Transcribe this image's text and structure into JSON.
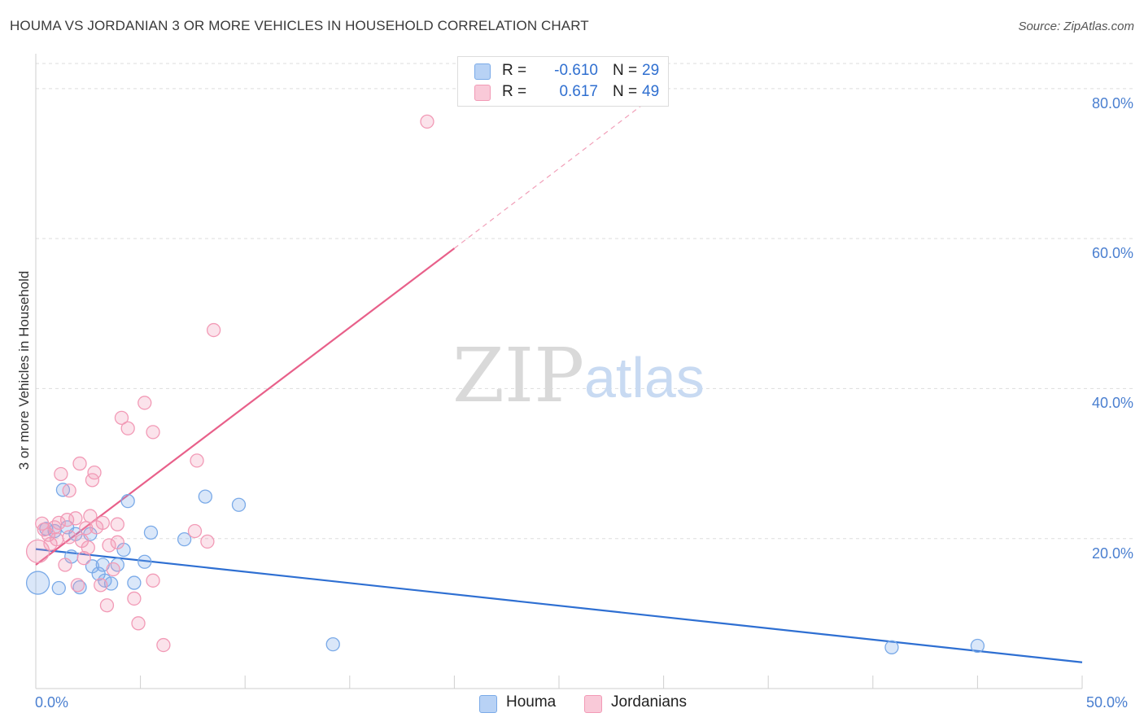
{
  "title": "HOUMA VS JORDANIAN 3 OR MORE VEHICLES IN HOUSEHOLD CORRELATION CHART",
  "source": "Source: ZipAtlas.com",
  "watermark": {
    "zip": "ZIP",
    "atlas": "atlas"
  },
  "legend": {
    "rows": [
      {
        "r_label": "R =",
        "r_value": "-0.610",
        "n_label": "N =",
        "n_value": "29",
        "color": "#7aaae8",
        "fill": "#b8d2f5"
      },
      {
        "r_label": "R =",
        "r_value": "0.617",
        "n_label": "N =",
        "n_value": "49",
        "color": "#f29ab6",
        "fill": "#f9c9d8"
      }
    ]
  },
  "bottom_legend": [
    {
      "label": "Houma",
      "color": "#7aaae8",
      "fill": "#b8d2f5"
    },
    {
      "label": "Jordanians",
      "color": "#f29ab6",
      "fill": "#f9c9d8"
    }
  ],
  "chart_data": {
    "type": "scatter",
    "title": "HOUMA VS JORDANIAN 3 OR MORE VEHICLES IN HOUSEHOLD CORRELATION CHART",
    "xlabel": "",
    "ylabel": "3 or more Vehicles in Household",
    "xlim": [
      0,
      50
    ],
    "ylim": [
      0,
      84
    ],
    "x_tick_labels": [
      "0.0%",
      "50.0%"
    ],
    "y_ticks": [
      20,
      40,
      60,
      80
    ],
    "y_tick_labels": [
      "20.0%",
      "40.0%",
      "60.0%",
      "80.0%"
    ],
    "grid": true,
    "series": [
      {
        "name": "Houma",
        "color": "#7aaae8",
        "line_color": "#2e6fd2",
        "trend": {
          "x": [
            0,
            50
          ],
          "y": [
            18.6,
            3.5
          ],
          "dashed_to": null
        },
        "points": [
          {
            "x": 0.1,
            "y": 14.1,
            "big": true
          },
          {
            "x": 0.5,
            "y": 21.3
          },
          {
            "x": 0.9,
            "y": 21.0
          },
          {
            "x": 1.1,
            "y": 13.4
          },
          {
            "x": 1.3,
            "y": 26.5
          },
          {
            "x": 1.5,
            "y": 21.5
          },
          {
            "x": 1.7,
            "y": 17.6
          },
          {
            "x": 1.9,
            "y": 20.6
          },
          {
            "x": 2.1,
            "y": 13.5
          },
          {
            "x": 2.6,
            "y": 20.6
          },
          {
            "x": 2.7,
            "y": 16.3
          },
          {
            "x": 3.0,
            "y": 15.3
          },
          {
            "x": 3.2,
            "y": 16.5
          },
          {
            "x": 3.3,
            "y": 14.4
          },
          {
            "x": 3.6,
            "y": 14.0
          },
          {
            "x": 3.9,
            "y": 16.5
          },
          {
            "x": 4.2,
            "y": 18.5
          },
          {
            "x": 4.4,
            "y": 25.0
          },
          {
            "x": 4.7,
            "y": 14.1
          },
          {
            "x": 5.2,
            "y": 16.9
          },
          {
            "x": 5.5,
            "y": 20.8
          },
          {
            "x": 7.1,
            "y": 19.9
          },
          {
            "x": 8.1,
            "y": 25.6
          },
          {
            "x": 9.7,
            "y": 24.5
          },
          {
            "x": 14.2,
            "y": 5.9
          },
          {
            "x": 40.9,
            "y": 5.5
          },
          {
            "x": 45.0,
            "y": 5.7
          }
        ]
      },
      {
        "name": "Jordanians",
        "color": "#f29ab6",
        "line_color": "#e8608a",
        "trend": {
          "x": [
            0,
            20
          ],
          "y": [
            16.5,
            58.7
          ],
          "dashed_to": [
            30,
            80.0
          ]
        },
        "points": [
          {
            "x": 0.1,
            "y": 18.3,
            "big": true
          },
          {
            "x": 0.3,
            "y": 22.0
          },
          {
            "x": 0.4,
            "y": 21.2
          },
          {
            "x": 0.6,
            "y": 20.5
          },
          {
            "x": 0.7,
            "y": 19.3
          },
          {
            "x": 0.9,
            "y": 21.5
          },
          {
            "x": 1.0,
            "y": 19.9
          },
          {
            "x": 1.1,
            "y": 22.1
          },
          {
            "x": 1.2,
            "y": 28.6
          },
          {
            "x": 1.4,
            "y": 16.5
          },
          {
            "x": 1.5,
            "y": 22.5
          },
          {
            "x": 1.6,
            "y": 20.2
          },
          {
            "x": 1.6,
            "y": 26.4
          },
          {
            "x": 1.9,
            "y": 22.7
          },
          {
            "x": 2.0,
            "y": 13.8
          },
          {
            "x": 2.1,
            "y": 30.0
          },
          {
            "x": 2.2,
            "y": 19.7
          },
          {
            "x": 2.3,
            "y": 17.4
          },
          {
            "x": 2.4,
            "y": 21.4
          },
          {
            "x": 2.5,
            "y": 18.8
          },
          {
            "x": 2.6,
            "y": 23.0
          },
          {
            "x": 2.7,
            "y": 27.8
          },
          {
            "x": 2.8,
            "y": 28.8
          },
          {
            "x": 2.9,
            "y": 21.5
          },
          {
            "x": 3.1,
            "y": 13.8
          },
          {
            "x": 3.2,
            "y": 22.1
          },
          {
            "x": 3.4,
            "y": 11.1
          },
          {
            "x": 3.5,
            "y": 19.1
          },
          {
            "x": 3.7,
            "y": 15.9
          },
          {
            "x": 3.9,
            "y": 19.5
          },
          {
            "x": 3.9,
            "y": 21.9
          },
          {
            "x": 4.1,
            "y": 36.1
          },
          {
            "x": 4.4,
            "y": 34.7
          },
          {
            "x": 4.7,
            "y": 12.0
          },
          {
            "x": 4.9,
            "y": 8.7
          },
          {
            "x": 5.2,
            "y": 38.1
          },
          {
            "x": 5.6,
            "y": 14.4
          },
          {
            "x": 5.6,
            "y": 34.2
          },
          {
            "x": 6.1,
            "y": 5.8
          },
          {
            "x": 7.6,
            "y": 21.0
          },
          {
            "x": 7.7,
            "y": 30.4
          },
          {
            "x": 8.2,
            "y": 19.6
          },
          {
            "x": 8.5,
            "y": 47.8
          },
          {
            "x": 18.7,
            "y": 75.6
          }
        ]
      }
    ]
  }
}
